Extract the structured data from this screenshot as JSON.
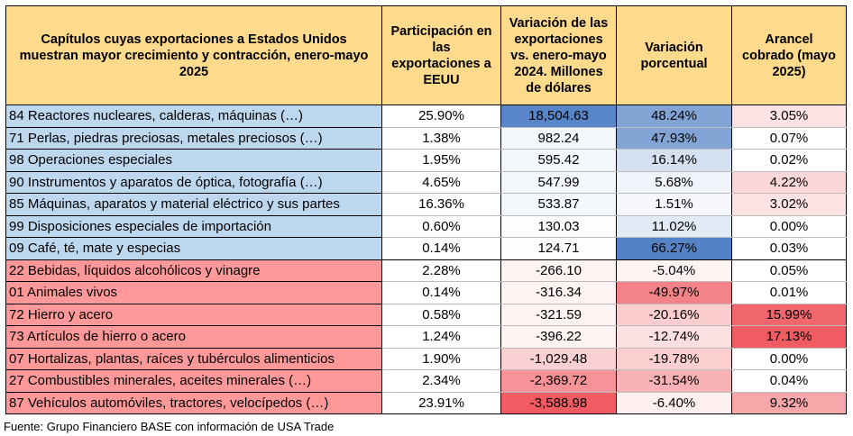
{
  "chart_data": {
    "type": "table",
    "headers": [
      "Capítulos cuyas exportaciones a Estados Unidos muestran mayor crecimiento y contracción, enero-mayo 2025",
      "Participación en las exportaciones a EEUU",
      "Variación de las exportaciones vs. enero-mayo 2024. Millones de dólares",
      "Variación porcentual",
      "Arancel cobrado (mayo 2025)"
    ],
    "rows": [
      {
        "name": "84 Reactores nucleares, calderas, máquinas (…)",
        "share": "25.90%",
        "change": "18,504.63",
        "pct": "48.24%",
        "tariff": "3.05%",
        "v_change": 18504.63,
        "v_pct": 48.24,
        "v_tariff": 3.05,
        "group": "growth"
      },
      {
        "name": "71 Perlas, piedras preciosas, metales preciosos (…)",
        "share": "1.38%",
        "change": "982.24",
        "pct": "47.93%",
        "tariff": "0.07%",
        "v_change": 982.24,
        "v_pct": 47.93,
        "v_tariff": 0.07,
        "group": "growth"
      },
      {
        "name": "98 Operaciones especiales",
        "share": "1.95%",
        "change": "595.42",
        "pct": "16.14%",
        "tariff": "0.02%",
        "v_change": 595.42,
        "v_pct": 16.14,
        "v_tariff": 0.02,
        "group": "growth"
      },
      {
        "name": "90 Instrumentos y aparatos de óptica, fotografía (…)",
        "share": "4.65%",
        "change": "547.99",
        "pct": "5.68%",
        "tariff": "4.22%",
        "v_change": 547.99,
        "v_pct": 5.68,
        "v_tariff": 4.22,
        "group": "growth"
      },
      {
        "name": "85 Máquinas, aparatos y material eléctrico y sus partes",
        "share": "16.36%",
        "change": "533.87",
        "pct": "1.51%",
        "tariff": "3.02%",
        "v_change": 533.87,
        "v_pct": 1.51,
        "v_tariff": 3.02,
        "group": "growth"
      },
      {
        "name": "99 Disposiciones especiales de importación",
        "share": "0.60%",
        "change": "130.03",
        "pct": "11.02%",
        "tariff": "0.00%",
        "v_change": 130.03,
        "v_pct": 11.02,
        "v_tariff": 0.0,
        "group": "growth"
      },
      {
        "name": "09 Café, té, mate y especias",
        "share": "0.14%",
        "change": "124.71",
        "pct": "66.27%",
        "tariff": "0.03%",
        "v_change": 124.71,
        "v_pct": 66.27,
        "v_tariff": 0.03,
        "group": "growth"
      },
      {
        "name": "22 Bebidas, líquidos alcohólicos y vinagre",
        "share": "2.28%",
        "change": "-266.10",
        "pct": "-5.04%",
        "tariff": "0.05%",
        "v_change": -266.1,
        "v_pct": -5.04,
        "v_tariff": 0.05,
        "group": "contraction"
      },
      {
        "name": "01 Animales vivos",
        "share": "0.14%",
        "change": "-316.34",
        "pct": "-49.97%",
        "tariff": "0.01%",
        "v_change": -316.34,
        "v_pct": -49.97,
        "v_tariff": 0.01,
        "group": "contraction"
      },
      {
        "name": "72 Hierro y acero",
        "share": "0.58%",
        "change": "-321.59",
        "pct": "-20.16%",
        "tariff": "15.99%",
        "v_change": -321.59,
        "v_pct": -20.16,
        "v_tariff": 15.99,
        "group": "contraction"
      },
      {
        "name": "73 Artículos de hierro o acero",
        "share": "1.24%",
        "change": "-396.22",
        "pct": "-12.74%",
        "tariff": "17.13%",
        "v_change": -396.22,
        "v_pct": -12.74,
        "v_tariff": 17.13,
        "group": "contraction"
      },
      {
        "name": "07 Hortalizas, plantas, raíces y tubérculos alimenticios",
        "share": "1.90%",
        "change": "-1,029.48",
        "pct": "-19.78%",
        "tariff": "0.00%",
        "v_change": -1029.48,
        "v_pct": -19.78,
        "v_tariff": 0.0,
        "group": "contraction"
      },
      {
        "name": "27 Combustibles minerales, aceites minerales (…)",
        "share": "2.34%",
        "change": "-2,369.72",
        "pct": "-31.54%",
        "tariff": "0.04%",
        "v_change": -2369.72,
        "v_pct": -31.54,
        "v_tariff": 0.04,
        "group": "contraction"
      },
      {
        "name": "87 Vehículos automóviles, tractores, velocípedos (…)",
        "share": "23.91%",
        "change": "-3,588.98",
        "pct": "-6.40%",
        "tariff": "9.32%",
        "v_change": -3588.98,
        "v_pct": -6.4,
        "v_tariff": 9.32,
        "group": "contraction"
      }
    ],
    "colors": {
      "header_bg": "#fdda8c",
      "growth_name_bg": "#bdd7ee",
      "contraction_name_bg": "#ff9999",
      "scale_positive": "#4f7fc4",
      "scale_negative": "#f0525a",
      "scale_tariff": "#f0525a"
    }
  },
  "footer": {
    "source": "Fuente: Grupo Financiero BASE con información de USA Trade"
  }
}
